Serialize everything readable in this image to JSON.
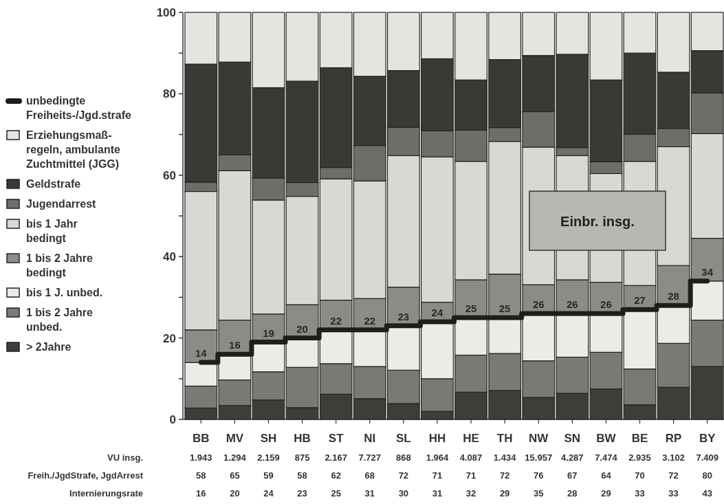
{
  "chart_data": {
    "type": "bar",
    "stacked": true,
    "title": "Einbr. insg.",
    "categories": [
      "BB",
      "MV",
      "SH",
      "HB",
      "ST",
      "NI",
      "SL",
      "HH",
      "HE",
      "TH",
      "NW",
      "SN",
      "BW",
      "BE",
      "RP",
      "BY"
    ],
    "ylim": [
      0,
      100
    ],
    "yticks": [
      0,
      {
        "value": 10,
        "label": null
      },
      20,
      {
        "value": 30,
        "label": null
      },
      40,
      {
        "value": 50,
        "label": null
      },
      60,
      {
        "value": 70,
        "label": null
      },
      80,
      {
        "value": 90,
        "label": null
      },
      100
    ],
    "grid": false,
    "legend": "left",
    "series": [
      {
        "name": "> 2Jahre",
        "color": "#3e3e39",
        "values": [
          2.8,
          3.4,
          4.8,
          2.9,
          6.2,
          5.1,
          3.9,
          2.0,
          6.7,
          7.1,
          5.4,
          6.4,
          7.5,
          3.6,
          7.9,
          13
        ]
      },
      {
        "name": "1 bis 2 Jahre unbed.",
        "color": "#7a7a74",
        "values": [
          5.4,
          6.3,
          6.9,
          9.9,
          7.5,
          7.9,
          8.2,
          8.0,
          9.1,
          9.1,
          9,
          8.9,
          9,
          8.8,
          10.8,
          11.4
        ]
      },
      {
        "name": "bis 1 J. unbed.",
        "color": "#ebebe8",
        "values": [
          5.8,
          6.3,
          7.3,
          7.2,
          8.3,
          9,
          10.9,
          14,
          9.2,
          8.8,
          11.6,
          10.7,
          9.5,
          14.6,
          9.3,
          9.6
        ]
      },
      {
        "name": "1 bis 2 Jahre bedingt",
        "color": "#8c8c86",
        "values": [
          8,
          8.4,
          6.9,
          8.2,
          7.3,
          7.7,
          9.5,
          4.8,
          9.3,
          10.7,
          7.1,
          8.3,
          7.7,
          5.9,
          9.8,
          10.5
        ]
      },
      {
        "name": "bis 1 Jahr bedingt",
        "color": "#d8d8d4",
        "values": [
          34,
          36.7,
          28,
          26.6,
          29.8,
          28.9,
          32.3,
          35.7,
          29.1,
          32.6,
          33.8,
          30.5,
          26.7,
          30.5,
          29.2,
          25.7
        ]
      },
      {
        "name": "Jugendarrest",
        "color": "#6e6e68",
        "values": [
          2.3,
          3.9,
          5.4,
          3.4,
          2.8,
          8.7,
          7,
          6.4,
          7.7,
          3.4,
          8.7,
          2,
          2.9,
          6.7,
          4.5,
          10
        ]
      },
      {
        "name": "Geldstrafe",
        "color": "#3a3a35",
        "values": [
          29,
          22.8,
          22.2,
          24.9,
          24.5,
          17,
          13.9,
          17.7,
          12.3,
          16.7,
          13.8,
          22.9,
          20.1,
          19.9,
          13.8,
          10.4
        ]
      },
      {
        "name": "Erziehungsmaß-regeln, ambulante Zuchtmittel (JGG)",
        "color": "#e4e4e0",
        "values": [
          12.7,
          12.2,
          18.5,
          16.9,
          13.6,
          15.7,
          14.3,
          11.4,
          16.6,
          11.6,
          10.6,
          10.3,
          16.6,
          10,
          14.7,
          9.4
        ]
      },
      {
        "name": "unbedingte Freiheits-/Jgd.strafe",
        "type": "step",
        "color": "#1e1e1a",
        "values": [
          14,
          16,
          19,
          20,
          22,
          22,
          23,
          24,
          25,
          25,
          26,
          26,
          26,
          27,
          28,
          34
        ],
        "value_labels": [
          "14",
          "16",
          "19",
          "20",
          "22",
          "22",
          "23",
          "24",
          "25",
          "25",
          "26",
          "26",
          "26",
          "27",
          "28",
          "34"
        ]
      }
    ],
    "annotations": [
      "VU insg.",
      "1.943",
      "1.294",
      "2.159",
      "875",
      "2.167",
      "7.727",
      "868",
      "1.964",
      "4.087",
      "1.434",
      "15.957",
      "4.287",
      "7.474",
      "2.935",
      "3.102",
      "7.409",
      "Freih./JgdStrafe, JgdArrest",
      "58",
      "65",
      "59",
      "58",
      "62",
      "68",
      "72",
      "71",
      "71",
      "72",
      "76",
      "67",
      "64",
      "70",
      "72",
      "80",
      "Internierungsrate",
      "16",
      "20",
      "24",
      "23",
      "25",
      "31",
      "30",
      "31",
      "32",
      "29",
      "35",
      "28",
      "29",
      "33",
      "33",
      "43"
    ]
  }
}
